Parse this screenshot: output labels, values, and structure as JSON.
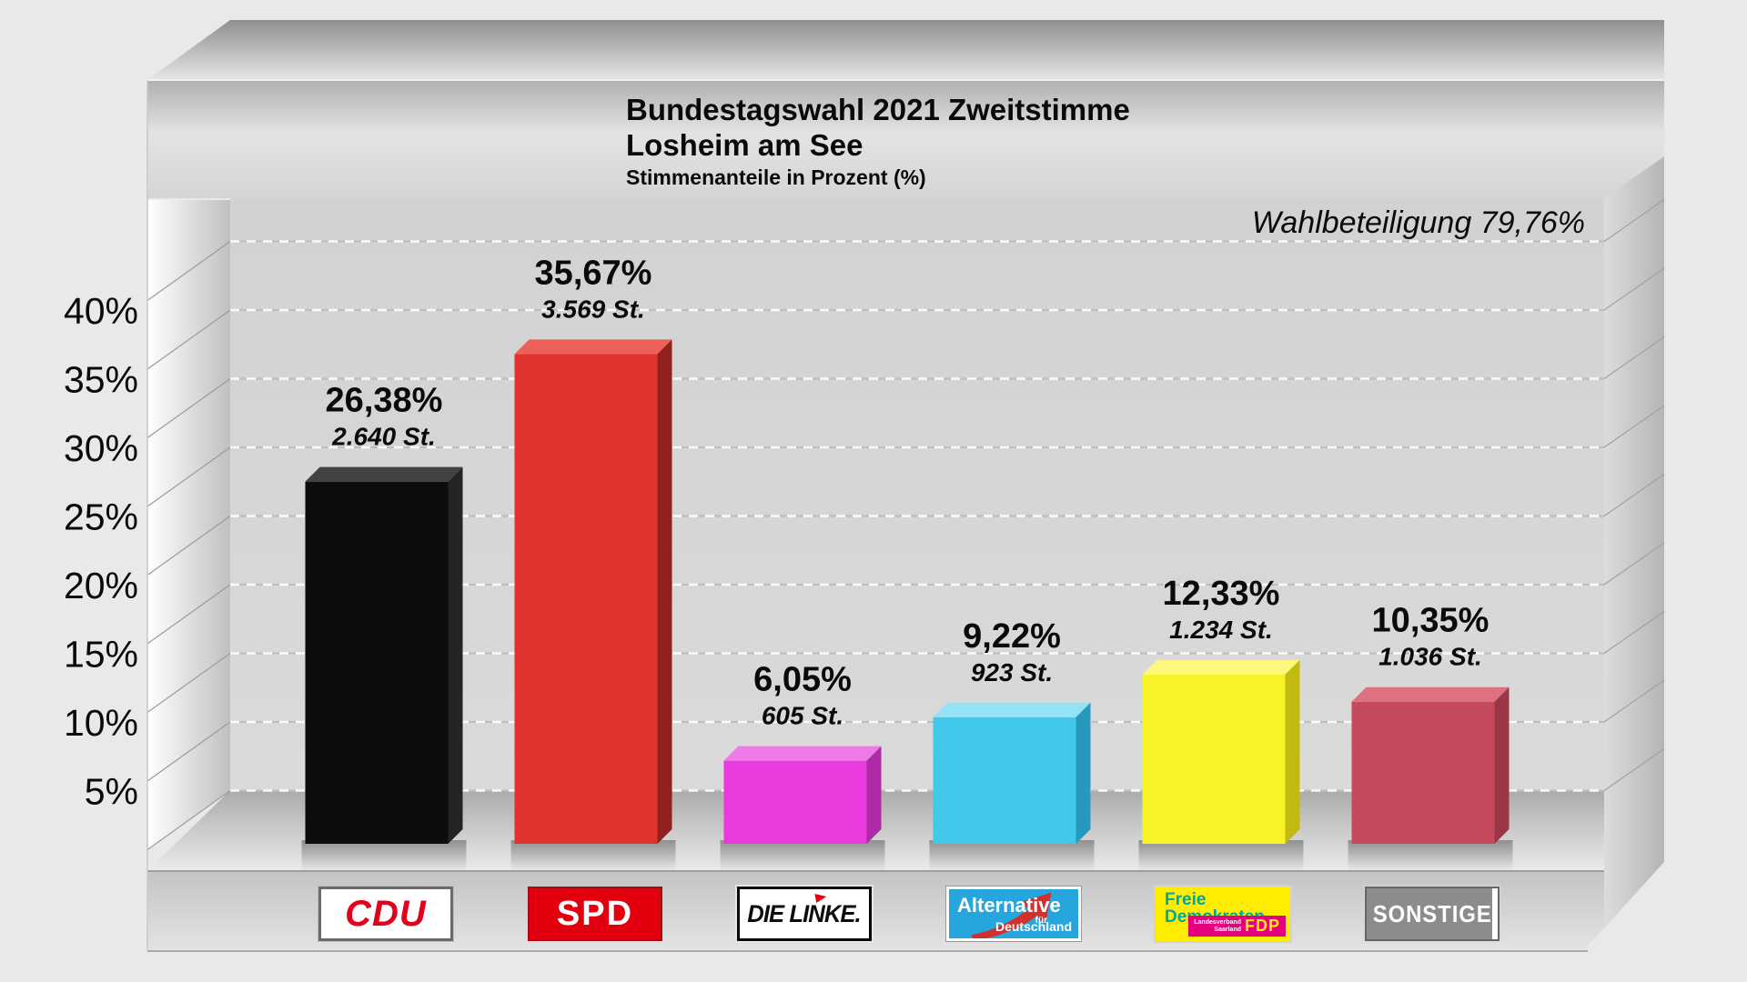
{
  "chart_data": {
    "type": "bar",
    "title": "Bundestagswahl 2021 Zweitstimme",
    "subtitle": "Losheim am See",
    "units_note": "Stimmenanteile in Prozent (%)",
    "turnout_note": "Wahlbeteiligung 79,76%",
    "categories": [
      "CDU",
      "SPD",
      "DIE LINKE",
      "AfD",
      "FDP",
      "SONSTIGE"
    ],
    "values": [
      26.38,
      35.67,
      6.05,
      9.22,
      12.33,
      10.35
    ],
    "value_labels": [
      "26,38%",
      "35,67%",
      "6,05%",
      "9,22%",
      "12,33%",
      "10,35%"
    ],
    "count_labels": [
      "2.640 St.",
      "3.569 St.",
      "605 St.",
      "923 St.",
      "1.234 St.",
      "1.036 St."
    ],
    "bar_colors": [
      {
        "front": "#0d0d0d",
        "top": "#424242",
        "side": "#242424"
      },
      {
        "front": "#e1332e",
        "top": "#ee6057",
        "side": "#92211e"
      },
      {
        "front": "#e83add",
        "top": "#ef79e7",
        "side": "#ad2ba4"
      },
      {
        "front": "#41c8ea",
        "top": "#93e2f5",
        "side": "#2899be"
      },
      {
        "front": "#f8f228",
        "top": "#fcf87e",
        "side": "#c1ba11"
      },
      {
        "front": "#c54a5e",
        "top": "#dd7181",
        "side": "#9c3547"
      }
    ],
    "ylim": [
      0,
      45
    ],
    "ytick_labels": [
      "40%",
      "35%",
      "30%",
      "25%",
      "20%",
      "15%",
      "10%",
      "5%"
    ],
    "grid": "horizontal-dashed",
    "legend_position": "bottom"
  },
  "legend": {
    "cdu": {
      "text": "CDU"
    },
    "spd": {
      "text": "SPD"
    },
    "linke": {
      "text": "DIE LINKE."
    },
    "afd": {
      "line1": "Alternative",
      "line2": "für",
      "line3": "Deutschland"
    },
    "fdp": {
      "line1": "Freie",
      "line2": "Demokraten",
      "small": "Landesverband Saarland",
      "badge": "FDP"
    },
    "sonstige": {
      "text": "SONSTIGE"
    }
  }
}
